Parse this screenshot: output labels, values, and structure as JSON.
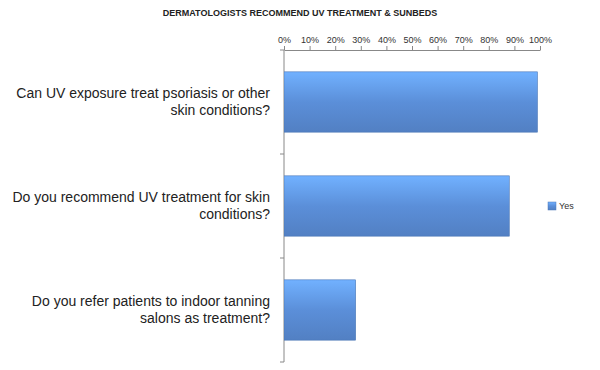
{
  "chart_data": {
    "type": "bar",
    "orientation": "horizontal",
    "title": "DERMATOLOGISTS RECOMMEND UV TREATMENT & SUNBEDS",
    "categories": [
      "Can UV exposure treat psoriasis or other skin conditions?",
      "Do you recommend UV treatment for skin conditions?",
      "Do you refer patients to indoor tanning salons as treatment?"
    ],
    "series": [
      {
        "name": "Yes",
        "color": "#5b8fd9",
        "values": [
          99,
          88,
          28
        ]
      }
    ],
    "xlim": [
      0,
      100
    ],
    "xticks": [
      {
        "value": 0,
        "label": "0%"
      },
      {
        "value": 10,
        "label": "10%"
      },
      {
        "value": 20,
        "label": "20%"
      },
      {
        "value": 30,
        "label": "30%"
      },
      {
        "value": 40,
        "label": "40%"
      },
      {
        "value": 50,
        "label": "50%"
      },
      {
        "value": 60,
        "label": "60%"
      },
      {
        "value": 70,
        "label": "70%"
      },
      {
        "value": 80,
        "label": "80%"
      },
      {
        "value": 90,
        "label": "90%"
      },
      {
        "value": 100,
        "label": "100%"
      }
    ],
    "grid": false,
    "legend": "right"
  }
}
